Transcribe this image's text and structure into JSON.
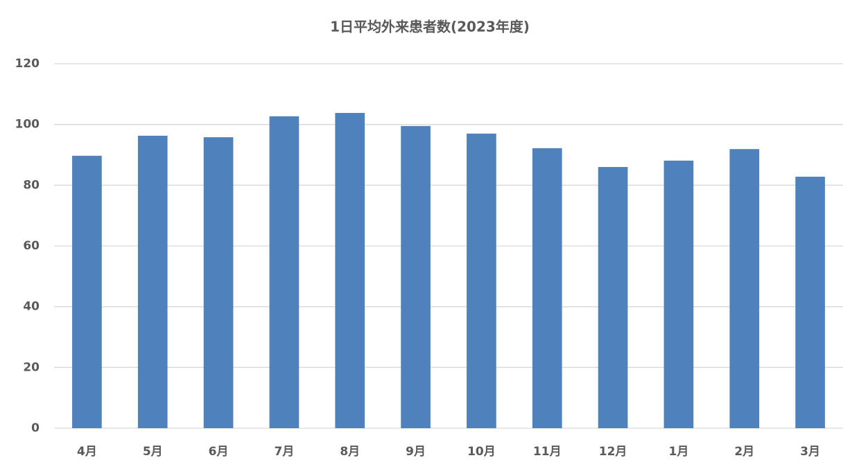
{
  "chart_data": {
    "type": "bar",
    "title": "1日平均外来患者数(2023年度)",
    "categories": [
      "4月",
      "5月",
      "6月",
      "7月",
      "8月",
      "9月",
      "10月",
      "11月",
      "12月",
      "1月",
      "2月",
      "3月"
    ],
    "values": [
      89.7,
      96.3,
      95.8,
      102.7,
      103.8,
      99.5,
      97.0,
      92.2,
      86.0,
      88.1,
      91.9,
      82.8
    ],
    "color": "#4f81bd",
    "ylim": [
      0,
      120
    ],
    "yticks": [
      0,
      20,
      40,
      60,
      80,
      100,
      120
    ],
    "grid": true
  }
}
